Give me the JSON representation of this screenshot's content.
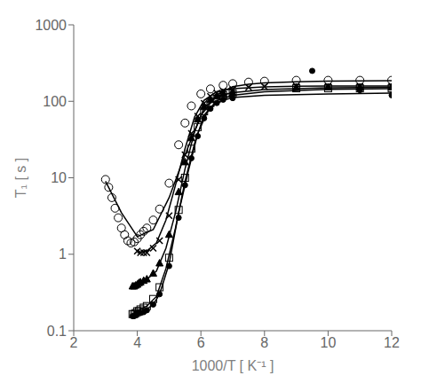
{
  "chart_data": {
    "type": "scatter",
    "xlabel": "1000/T   [ K⁻¹ ]",
    "ylabel": "T₁  [ s ]",
    "log": "y",
    "grid": false,
    "xlim": [
      2,
      12
    ],
    "ylim": [
      0.1,
      1000
    ],
    "xticks": [
      2,
      4,
      6,
      8,
      10,
      12
    ],
    "yticks": [
      0.1,
      1,
      10,
      100,
      1000
    ],
    "series": [
      {
        "type": "line",
        "color": "black",
        "line_style": "solid",
        "x": [
          3.9,
          4.1,
          4.3,
          4.5,
          4.7,
          5.0,
          5.3,
          5.6,
          5.9,
          6.2,
          6.5,
          7.0,
          8.0,
          10.0,
          12.0
        ],
        "values": [
          0.17,
          0.175,
          0.19,
          0.22,
          0.3,
          0.75,
          3.5,
          12.0,
          38.0,
          72.0,
          97.0,
          112.0,
          120.0,
          125.0,
          128.0
        ]
      },
      {
        "type": "line",
        "color": "black",
        "line_style": "solid",
        "x": [
          3.9,
          4.1,
          4.3,
          4.6,
          4.9,
          5.2,
          5.5,
          5.8,
          6.1,
          6.5,
          7.0,
          8.0,
          10.0,
          12.0
        ],
        "values": [
          0.175,
          0.19,
          0.21,
          0.28,
          0.65,
          2.2,
          9.0,
          28.0,
          66.0,
          102.0,
          120.0,
          133.0,
          143.0,
          146.0
        ]
      },
      {
        "type": "line",
        "color": "black",
        "line_style": "solid",
        "x": [
          3.9,
          4.1,
          4.3,
          4.6,
          4.9,
          5.2,
          5.5,
          5.8,
          6.1,
          6.5,
          7.0,
          8.0,
          10.0,
          12.0
        ],
        "values": [
          0.4,
          0.43,
          0.47,
          0.6,
          1.2,
          3.5,
          13.0,
          40.0,
          82.0,
          116.0,
          130.0,
          142.0,
          150.0,
          152.0
        ]
      },
      {
        "type": "line",
        "color": "black",
        "line_style": "solid",
        "x": [
          4.0,
          4.3,
          4.6,
          4.9,
          5.2,
          5.5,
          5.8,
          6.1,
          6.5,
          7.0,
          8.0,
          9.0,
          10.0,
          12.0
        ],
        "values": [
          1.05,
          1.1,
          1.4,
          2.8,
          8.0,
          24.0,
          62.0,
          103.0,
          134.0,
          146.0,
          154.0,
          157.0,
          158.0,
          159.0
        ]
      },
      {
        "type": "line",
        "color": "black",
        "line_style": "solid",
        "x": [
          3.0,
          3.5,
          4.0,
          4.5,
          5.0,
          5.5,
          6.0,
          6.5,
          7.0,
          7.5,
          8.0,
          9.0,
          10.0,
          12.0
        ],
        "values": [
          9.0,
          3.5,
          1.7,
          2.1,
          5.5,
          20.0,
          65.0,
          122.0,
          155.0,
          167.0,
          174.0,
          180.0,
          184.0,
          186.0
        ]
      },
      {
        "type": "scatter",
        "color": "black",
        "marker": "circle",
        "x": [
          3.85,
          3.9,
          3.95,
          4.0,
          4.05,
          4.1,
          4.2,
          4.3,
          4.5,
          4.7,
          5.0,
          5.3,
          5.5,
          5.7,
          5.9,
          6.1,
          6.3,
          6.5,
          6.7,
          7.0,
          9.5,
          11.0,
          12.0
        ],
        "values": [
          0.155,
          0.155,
          0.16,
          0.17,
          0.17,
          0.17,
          0.175,
          0.185,
          0.22,
          0.3,
          0.7,
          3.0,
          8.0,
          18.0,
          35.0,
          60.0,
          80.0,
          95.0,
          105.0,
          110.0,
          250.0,
          140.0,
          120.0
        ]
      },
      {
        "type": "scatter",
        "color": "black",
        "marker": "open_square",
        "x": [
          3.85,
          3.9,
          3.95,
          4.0,
          4.05,
          4.1,
          4.2,
          4.3,
          4.5,
          4.7,
          5.0,
          5.3,
          5.5,
          5.7,
          5.9,
          6.1,
          6.3,
          6.5,
          6.7,
          7.0,
          9.0,
          10.0,
          11.0,
          12.0
        ],
        "values": [
          0.165,
          0.165,
          0.17,
          0.18,
          0.18,
          0.19,
          0.2,
          0.21,
          0.26,
          0.37,
          0.9,
          3.8,
          10.0,
          24.0,
          46.0,
          74.0,
          95.0,
          108.0,
          120.0,
          126.0,
          148.0,
          148.0,
          148.0,
          148.0
        ]
      },
      {
        "type": "scatter",
        "color": "black",
        "marker": "triangle",
        "x": [
          3.85,
          3.9,
          3.95,
          4.0,
          4.05,
          4.1,
          4.2,
          4.3,
          4.5,
          4.7,
          5.0,
          5.3,
          5.5,
          5.7,
          5.9,
          6.1,
          6.3,
          6.5,
          6.7,
          7.0,
          9.0,
          10.0,
          11.0,
          12.0
        ],
        "values": [
          0.38,
          0.38,
          0.39,
          0.4,
          0.42,
          0.43,
          0.45,
          0.47,
          0.56,
          0.76,
          1.8,
          6.5,
          16.0,
          33.0,
          58.0,
          84.0,
          104.0,
          116.0,
          124.0,
          128.0,
          152.0,
          152.0,
          152.0,
          152.0
        ]
      },
      {
        "type": "scatter",
        "color": "black",
        "marker": "x",
        "x": [
          4.0,
          4.1,
          4.2,
          4.3,
          4.5,
          4.7,
          5.0,
          5.3,
          5.5,
          5.7,
          5.9,
          6.1,
          6.3,
          6.5,
          6.7,
          7.0,
          7.5,
          8.0,
          9.0,
          10.0,
          11.0,
          12.0
        ],
        "values": [
          1.1,
          1.05,
          1.05,
          1.05,
          1.2,
          1.5,
          3.2,
          9.5,
          20.0,
          38.0,
          64.0,
          94.0,
          116.0,
          128.0,
          136.0,
          142.0,
          152.0,
          155.0,
          158.0,
          158.0,
          158.0,
          158.0
        ]
      },
      {
        "type": "scatter",
        "color": "black",
        "marker": "open_circle",
        "x": [
          3.0,
          3.1,
          3.2,
          3.3,
          3.4,
          3.5,
          3.6,
          3.7,
          3.8,
          3.9,
          4.0,
          4.1,
          4.2,
          4.3,
          4.5,
          4.7,
          5.0,
          5.3,
          5.5,
          5.7,
          6.0,
          6.3,
          6.7,
          7.0,
          7.5,
          8.0,
          9.0,
          10.0,
          11.0,
          12.0
        ],
        "values": [
          9.5,
          7.5,
          5.5,
          4.0,
          3.0,
          2.2,
          1.8,
          1.5,
          1.4,
          1.45,
          1.6,
          1.8,
          2.0,
          2.2,
          2.8,
          3.9,
          8.5,
          27.0,
          52.0,
          87.0,
          125.0,
          145.0,
          162.0,
          170.0,
          178.0,
          183.0,
          188.0,
          188.0,
          188.0,
          188.0
        ]
      }
    ]
  }
}
